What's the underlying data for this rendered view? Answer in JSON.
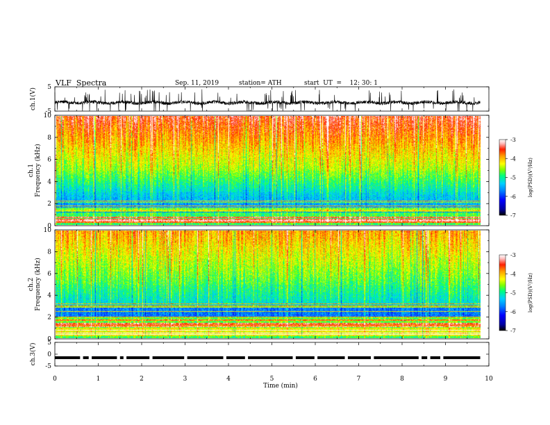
{
  "header": {
    "title": "VLF  Spectra",
    "date": "Sep. 11, 2019",
    "station": "station= ATH",
    "start": "start  UT  =    12: 30: 1"
  },
  "chart_data": [
    {
      "type": "line",
      "panel": "ch1-waveform",
      "ylabel": "ch.1(V)",
      "ylim": [
        -5,
        5
      ],
      "yticks": [
        "5",
        "-5"
      ],
      "xlim": [
        0,
        10
      ],
      "series": [
        {
          "description": "noisy waveform around -1.5 V with frequent spikes to ±5 V",
          "baseline": -1.5
        }
      ]
    },
    {
      "type": "heatmap",
      "panel": "ch1-spectrogram",
      "ylabel": "ch.1\nFrequency  (kHz)",
      "ylim": [
        0,
        10
      ],
      "yticks": [
        "0",
        "2",
        "4",
        "6",
        "8",
        "10"
      ],
      "xlim": [
        0,
        9.8
      ],
      "colorbar": {
        "label": "log(PSD)(V²/Hz)",
        "range": [
          -7,
          -3
        ],
        "ticks": [
          "-3",
          "-4",
          "-5",
          "-6",
          "-7"
        ]
      }
    },
    {
      "type": "heatmap",
      "panel": "ch2-spectrogram",
      "ylabel": "ch.2\nFrequency  (kHz)",
      "ylim": [
        0,
        10
      ],
      "yticks": [
        "0",
        "2",
        "4",
        "6",
        "8",
        "10"
      ],
      "xlim": [
        0,
        9.8
      ],
      "colorbar": {
        "label": "log(PSD)(V²/Hz)",
        "range": [
          -7,
          -3
        ],
        "ticks": [
          "-3",
          "-4",
          "-5",
          "-6",
          "-7"
        ]
      }
    },
    {
      "type": "line",
      "panel": "ch3-waveform",
      "ylabel": "ch.3(V)",
      "ylim": [
        -5,
        5
      ],
      "yticks": [
        "5",
        "0",
        "-5"
      ],
      "xlim": [
        0,
        10
      ],
      "xlabel": "Time  (min)",
      "xticks": [
        "0",
        "1",
        "2",
        "3",
        "4",
        "5",
        "6",
        "7",
        "8",
        "9",
        "10"
      ],
      "series": [
        {
          "description": "thick band near -1.5 V with short gaps",
          "baseline": -1.5
        }
      ]
    }
  ],
  "colors": {
    "scale": [
      "#000000",
      "#0000a0",
      "#0000ff",
      "#0080ff",
      "#00d0ff",
      "#00ff80",
      "#80ff00",
      "#ffff00",
      "#ffa000",
      "#ff2000",
      "#ffc0c0",
      "#ffffff"
    ]
  }
}
